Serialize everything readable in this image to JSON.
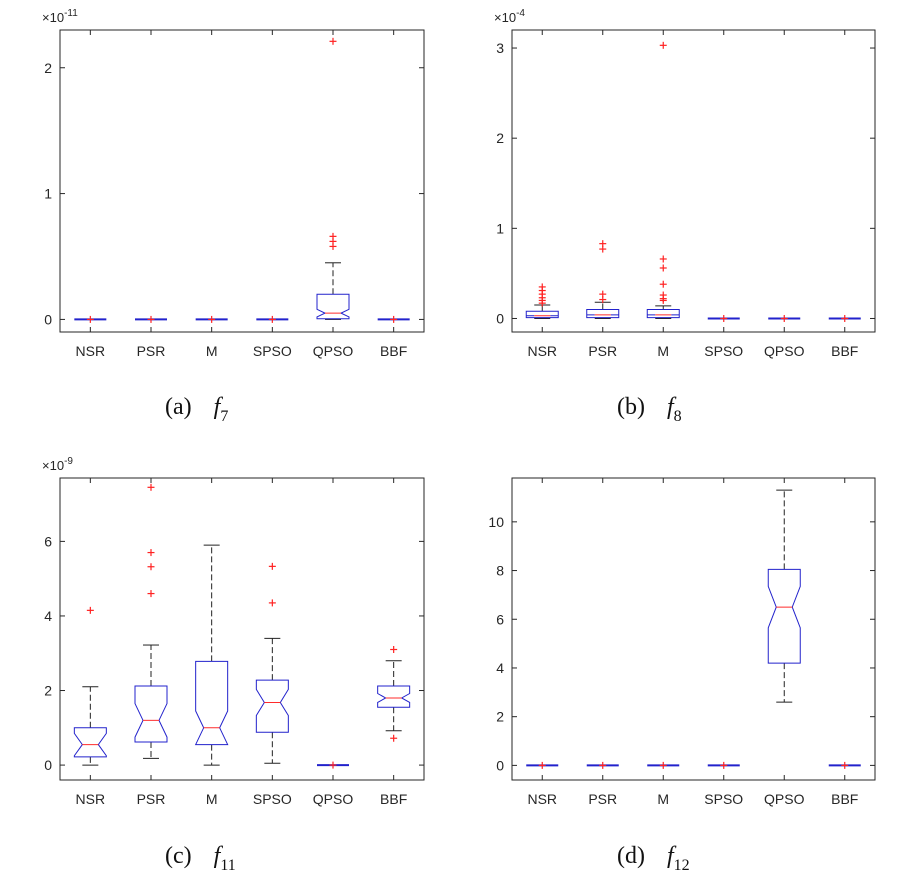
{
  "chart_data": [
    {
      "type": "box",
      "exponent": "-11",
      "caption": {
        "label": "(a)",
        "func": "f",
        "sub": "7"
      },
      "categories": [
        "NSR",
        "PSR",
        "M",
        "SPSO",
        "QPSO",
        "BBF"
      ],
      "yticks": [
        0,
        1,
        2
      ],
      "ylim": [
        -0.1,
        2.3
      ],
      "boxes": [
        {
          "q1": 0,
          "median": 0,
          "q3": 0,
          "lo": 0,
          "hi": 0,
          "outliers": [
            0.0
          ]
        },
        {
          "q1": 0,
          "median": 0,
          "q3": 0,
          "lo": 0,
          "hi": 0,
          "outliers": [
            0.0
          ]
        },
        {
          "q1": 0,
          "median": 0,
          "q3": 0,
          "lo": 0,
          "hi": 0,
          "outliers": [
            0.0
          ]
        },
        {
          "q1": 0,
          "median": 0,
          "q3": 0,
          "lo": 0,
          "hi": 0,
          "outliers": [
            0.0
          ]
        },
        {
          "q1": 0.005,
          "median": 0.05,
          "q3": 0.2,
          "lo": 0,
          "hi": 0.45,
          "outliers": [
            0.58,
            0.62,
            0.66,
            2.21
          ],
          "notch": 0.03
        },
        {
          "q1": 0,
          "median": 0,
          "q3": 0,
          "lo": 0,
          "hi": 0,
          "outliers": [
            0.0
          ]
        }
      ]
    },
    {
      "type": "box",
      "exponent": "-4",
      "caption": {
        "label": "(b)",
        "func": "f",
        "sub": "8"
      },
      "categories": [
        "NSR",
        "PSR",
        "M",
        "SPSO",
        "QPSO",
        "BBF"
      ],
      "yticks": [
        0,
        1,
        2,
        3
      ],
      "ylim": [
        -0.15,
        3.2
      ],
      "boxes": [
        {
          "q1": 0.01,
          "median": 0.03,
          "q3": 0.08,
          "lo": 0,
          "hi": 0.15,
          "outliers": [
            0.17,
            0.2,
            0.23,
            0.27,
            0.31,
            0.35
          ]
        },
        {
          "q1": 0.01,
          "median": 0.04,
          "q3": 0.1,
          "lo": 0,
          "hi": 0.18,
          "outliers": [
            0.21,
            0.27,
            0.77,
            0.83
          ]
        },
        {
          "q1": 0.01,
          "median": 0.04,
          "q3": 0.1,
          "lo": 0,
          "hi": 0.14,
          "outliers": [
            0.2,
            0.22,
            0.26,
            0.38,
            0.56,
            0.66,
            3.03
          ]
        },
        {
          "q1": 0,
          "median": 0,
          "q3": 0,
          "lo": 0,
          "hi": 0,
          "outliers": [
            0.0
          ]
        },
        {
          "q1": 0,
          "median": 0,
          "q3": 0,
          "lo": 0,
          "hi": 0,
          "outliers": [
            0.0
          ]
        },
        {
          "q1": 0,
          "median": 0,
          "q3": 0,
          "lo": 0,
          "hi": 0,
          "outliers": [
            0.0
          ]
        }
      ]
    },
    {
      "type": "box",
      "exponent": "-9",
      "caption": {
        "label": "(c)",
        "func": "f",
        "sub": "11"
      },
      "categories": [
        "NSR",
        "PSR",
        "M",
        "SPSO",
        "QPSO",
        "BBF"
      ],
      "yticks": [
        0,
        2,
        4,
        6
      ],
      "ylim": [
        -0.4,
        7.7
      ],
      "boxes": [
        {
          "q1": 0.22,
          "median": 0.55,
          "q3": 1.0,
          "lo": 0,
          "hi": 2.1,
          "outliers": [
            4.15
          ],
          "notch": 0.3
        },
        {
          "q1": 0.62,
          "median": 1.2,
          "q3": 2.12,
          "lo": 0.18,
          "hi": 3.22,
          "outliers": [
            4.6,
            5.32,
            5.7,
            7.45
          ],
          "notch": 0.45
        },
        {
          "q1": 0.55,
          "median": 1.0,
          "q3": 2.78,
          "lo": 0,
          "hi": 5.9,
          "outliers": [],
          "notch": 0.45
        },
        {
          "q1": 0.88,
          "median": 1.68,
          "q3": 2.28,
          "lo": 0.05,
          "hi": 3.4,
          "outliers": [
            4.35,
            5.33
          ],
          "notch": 0.35
        },
        {
          "q1": 0,
          "median": 0,
          "q3": 0,
          "lo": 0,
          "hi": 0,
          "outliers": [
            0.0
          ]
        },
        {
          "q1": 1.55,
          "median": 1.8,
          "q3": 2.12,
          "lo": 0.92,
          "hi": 2.8,
          "outliers": [
            0.72,
            3.1
          ],
          "notch": 0.12
        }
      ]
    },
    {
      "type": "box",
      "exponent": "",
      "caption": {
        "label": "(d)",
        "func": "f",
        "sub": "12"
      },
      "categories": [
        "NSR",
        "PSR",
        "M",
        "SPSO",
        "QPSO",
        "BBF"
      ],
      "yticks": [
        0,
        2,
        4,
        6,
        8,
        10
      ],
      "ylim": [
        -0.6,
        11.8
      ],
      "boxes": [
        {
          "q1": 0,
          "median": 0,
          "q3": 0,
          "lo": 0,
          "hi": 0,
          "outliers": [
            0.0
          ]
        },
        {
          "q1": 0,
          "median": 0,
          "q3": 0,
          "lo": 0,
          "hi": 0,
          "outliers": [
            0.0
          ]
        },
        {
          "q1": 0,
          "median": 0,
          "q3": 0,
          "lo": 0,
          "hi": 0,
          "outliers": [
            0.0
          ]
        },
        {
          "q1": 0,
          "median": 0,
          "q3": 0,
          "lo": 0,
          "hi": 0,
          "outliers": [
            0.0
          ]
        },
        {
          "q1": 4.2,
          "median": 6.5,
          "q3": 8.05,
          "lo": 2.6,
          "hi": 11.3,
          "outliers": [],
          "notch": 0.85
        },
        {
          "q1": 0,
          "median": 0,
          "q3": 0,
          "lo": 0,
          "hi": 0,
          "outliers": [
            0.0
          ]
        }
      ]
    }
  ],
  "colors": {
    "box": "#2222cc",
    "median": "#ff2b2b",
    "outlier": "#ff2222",
    "whisker": "#222222",
    "axis": "#262626"
  }
}
